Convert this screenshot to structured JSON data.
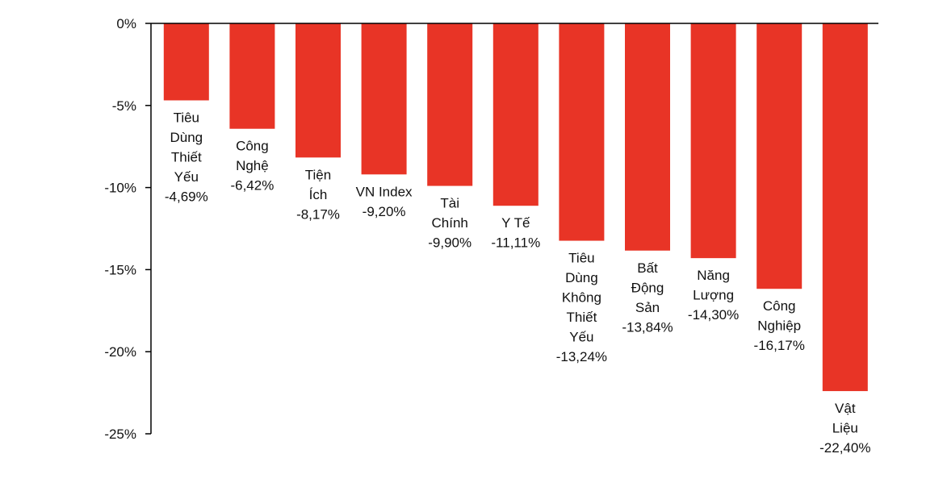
{
  "chart_data": {
    "type": "bar",
    "orientation": "vertical",
    "categories": [
      [
        "Tiêu",
        "Dùng",
        "Thiết",
        "Yếu"
      ],
      [
        "Công",
        "Nghệ"
      ],
      [
        "Tiện",
        "Ích"
      ],
      [
        "VN Index"
      ],
      [
        "Tài",
        "Chính"
      ],
      [
        "Y Tế"
      ],
      [
        "Tiêu",
        "Dùng",
        "Không",
        "Thiết",
        "Yếu"
      ],
      [
        "Bất",
        "Động",
        "Sản"
      ],
      [
        "Năng",
        "Lượng"
      ],
      [
        "Công",
        "Nghiệp"
      ],
      [
        "Vật",
        "Liệu"
      ]
    ],
    "values": [
      -4.69,
      -6.42,
      -8.17,
      -9.2,
      -9.9,
      -11.11,
      -13.24,
      -13.84,
      -14.3,
      -16.17,
      -22.4
    ],
    "value_labels": [
      "-4,69%",
      "-6,42%",
      "-8,17%",
      "-9,20%",
      "-9,90%",
      "-11,11%",
      "-13,24%",
      "-13,84%",
      "-14,30%",
      "-16,17%",
      "-22,40%"
    ],
    "y_ticks": [
      0,
      -5,
      -10,
      -15,
      -20,
      -25
    ],
    "y_tick_labels": [
      "0%",
      "-5%",
      "-10%",
      "-15%",
      "-20%",
      "-25%"
    ],
    "ylim": [
      -25,
      0
    ],
    "title": "",
    "xlabel": "",
    "ylabel": "",
    "grid": false,
    "colors": {
      "bar": "#e83426",
      "axis": "#000000",
      "text": "#111111"
    }
  }
}
